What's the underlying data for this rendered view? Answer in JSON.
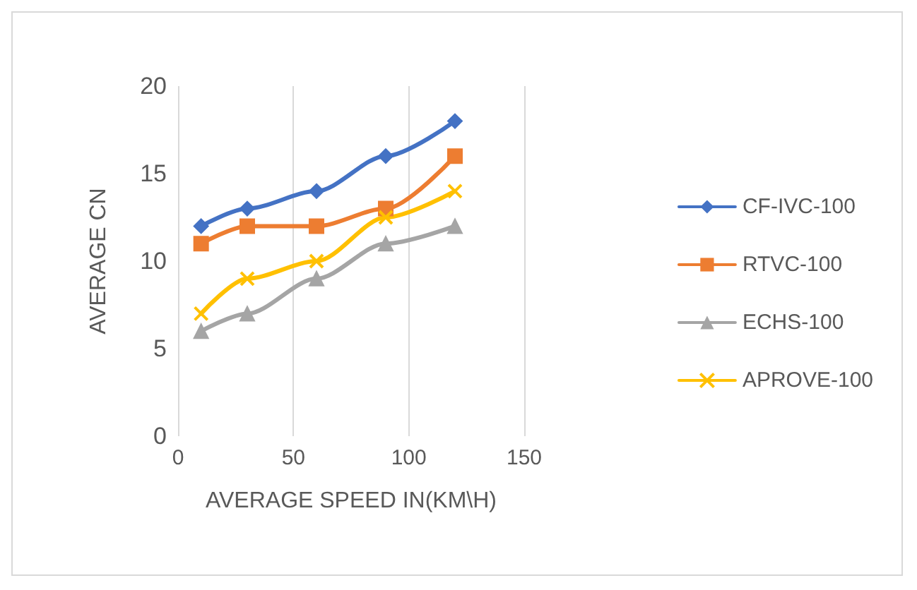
{
  "chart_data": {
    "type": "line",
    "xlabel": "AVERAGE SPEED IN(KM\\H)",
    "ylabel": "AVERAGE CN",
    "x": [
      10,
      30,
      60,
      90,
      120
    ],
    "series": [
      {
        "name": "CF-IVC-100",
        "color": "#4472c4",
        "marker": "diamond",
        "values": [
          12,
          13,
          14,
          16,
          18
        ]
      },
      {
        "name": "RTVC-100",
        "color": "#ed7d31",
        "marker": "square",
        "values": [
          11,
          12,
          12,
          13,
          16
        ]
      },
      {
        "name": "ECHS-100",
        "color": "#a5a5a5",
        "marker": "triangle",
        "values": [
          6,
          7,
          9,
          11,
          12
        ]
      },
      {
        "name": "APROVE-100",
        "color": "#ffc000",
        "marker": "cross",
        "values": [
          7,
          9,
          10,
          12.5,
          14
        ]
      }
    ],
    "xlim": [
      0,
      150
    ],
    "xticks": [
      0,
      50,
      100,
      150
    ],
    "ylim": [
      0,
      20
    ],
    "yticks": [
      0,
      5,
      10,
      15,
      20
    ],
    "grid": "x",
    "legend": "right",
    "line_style": "solid"
  }
}
